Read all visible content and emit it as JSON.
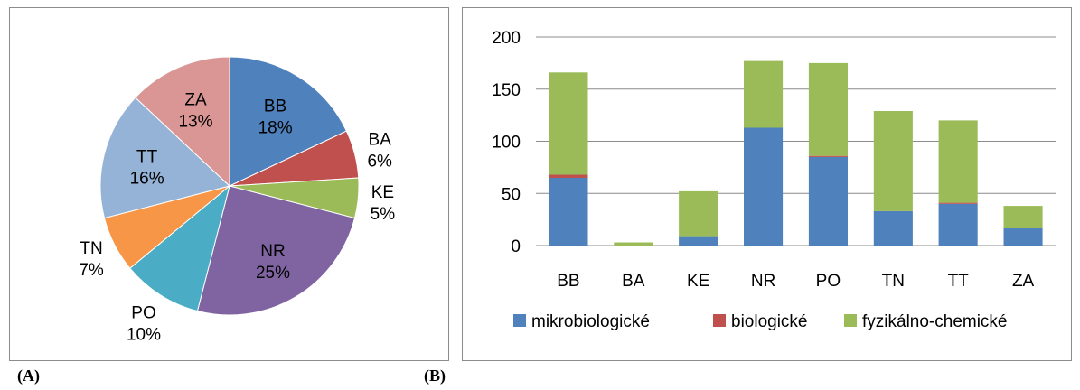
{
  "figure_labels": {
    "a": "(A)",
    "b": "(B)"
  },
  "chart_data": [
    {
      "type": "pie",
      "title": "",
      "categories": [
        "BB",
        "BA",
        "KE",
        "NR",
        "PO",
        "TN",
        "TT",
        "ZA"
      ],
      "values": [
        18,
        6,
        5,
        25,
        10,
        7,
        16,
        13
      ],
      "value_labels": [
        "18%",
        "6%",
        "5%",
        "25%",
        "10%",
        "7%",
        "16%",
        "13%"
      ],
      "colors": [
        "#4f81bd",
        "#c0504d",
        "#9bbb59",
        "#8064a2",
        "#4bacc6",
        "#f79646",
        "#95b3d7",
        "#d99694"
      ],
      "legend": "none"
    },
    {
      "type": "bar",
      "stacked": true,
      "title": "",
      "xlabel": "",
      "ylabel": "",
      "categories": [
        "BB",
        "BA",
        "KE",
        "NR",
        "PO",
        "TN",
        "TT",
        "ZA"
      ],
      "series": [
        {
          "name": "mikrobiologické",
          "color": "#4f81bd",
          "values": [
            65,
            0,
            9,
            113,
            85,
            33,
            40,
            17
          ]
        },
        {
          "name": "biologické",
          "color": "#c0504d",
          "values": [
            3,
            0,
            0,
            0,
            1,
            0,
            1,
            0
          ]
        },
        {
          "name": "fyzikálno-chemické",
          "color": "#9bbb59",
          "values": [
            98,
            3,
            43,
            64,
            89,
            96,
            79,
            21
          ]
        }
      ],
      "ylim": [
        0,
        200
      ],
      "yticks": [
        0,
        50,
        100,
        150,
        200
      ],
      "grid": true,
      "legend": "bottom"
    }
  ]
}
